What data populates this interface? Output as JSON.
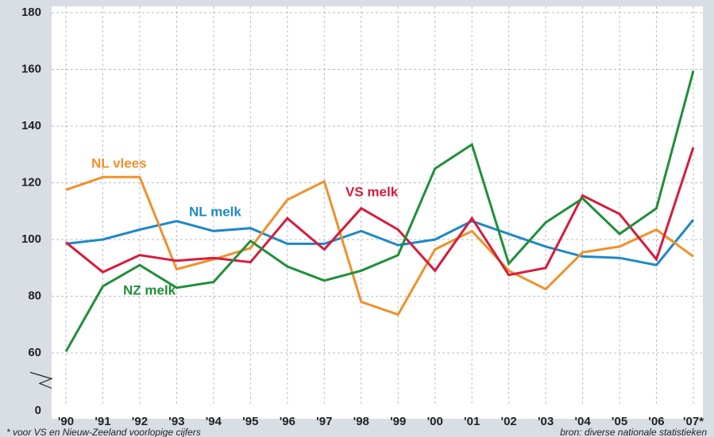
{
  "chart_data": {
    "type": "line",
    "categories": [
      "'90",
      "'91",
      "'92",
      "'93",
      "'94",
      "'95",
      "'96",
      "'97",
      "'98",
      "'99",
      "'00",
      "'01",
      "'02",
      "'03",
      "'04",
      "'05",
      "'06",
      "'07*"
    ],
    "series": [
      {
        "name": "NL melk",
        "color": "#1e88c8",
        "values": [
          98.5,
          100,
          103.5,
          106.5,
          103,
          104,
          98.5,
          98.5,
          103,
          98,
          100,
          106.5,
          102,
          97.5,
          94,
          93.5,
          91,
          107
        ]
      },
      {
        "name": "NL vlees",
        "color": "#f0902a",
        "values": [
          117.5,
          122,
          122,
          89.5,
          93,
          97,
          114,
          120.5,
          78,
          73.5,
          96.5,
          103,
          89,
          82.5,
          95.5,
          97.5,
          103.5,
          94
        ]
      },
      {
        "name": "VS melk",
        "color": "#d81b3c",
        "values": [
          99,
          88.5,
          94.5,
          92.5,
          93.5,
          92,
          107.5,
          96.5,
          111,
          103.5,
          89,
          107.5,
          87.5,
          90,
          115.5,
          109,
          93,
          132.5
        ]
      },
      {
        "name": "NZ melk",
        "color": "#1f8f3a",
        "values": [
          60.5,
          83.5,
          91,
          83,
          85,
          99.5,
          90.5,
          85.5,
          89,
          94.5,
          125,
          133.5,
          91.5,
          106,
          114.5,
          102,
          111,
          159.5
        ]
      }
    ],
    "ylim": [
      0,
      180
    ],
    "yticks": [
      0,
      60,
      80,
      100,
      120,
      140,
      160,
      180
    ],
    "y_axis_break": true,
    "grid": true,
    "footnote": "* voor VS en Nieuw-Zeeland voorlopige cijfers",
    "source": "bron: diverse nationale statistieken"
  }
}
